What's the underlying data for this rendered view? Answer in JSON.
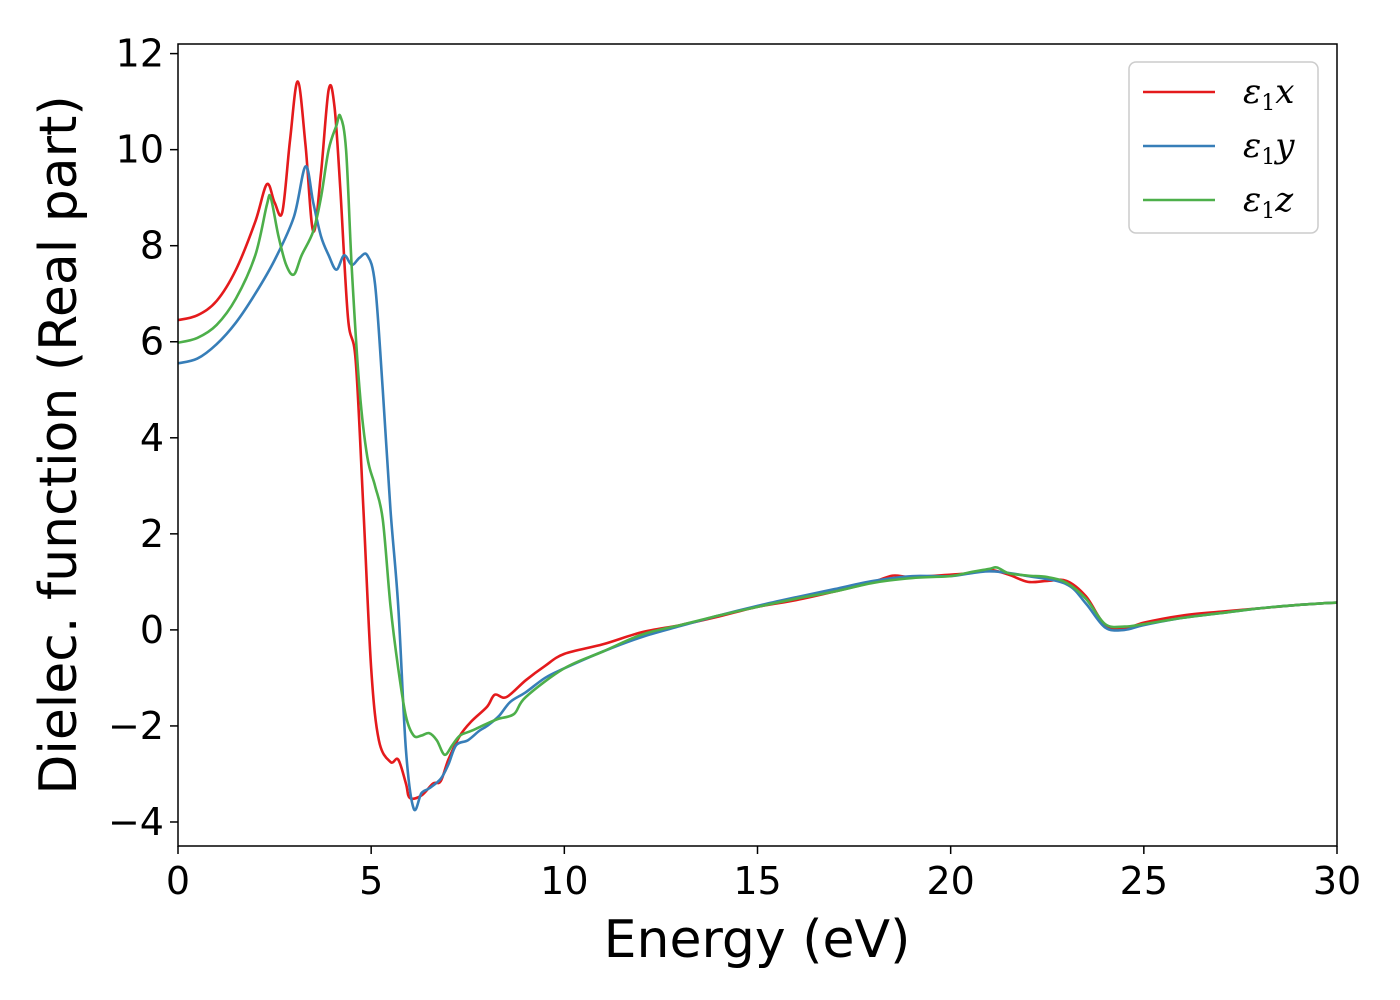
{
  "chart_data": {
    "type": "line",
    "title": "",
    "xlabel": "Energy (eV)",
    "ylabel": "Dielec. function (Real part)",
    "xlim": [
      0,
      30
    ],
    "ylim": [
      -4.5,
      12.2
    ],
    "xticks": [
      0,
      5,
      10,
      15,
      20,
      25,
      30
    ],
    "yticks": [
      -4,
      -2,
      0,
      2,
      4,
      6,
      8,
      10,
      12
    ],
    "xtick_labels": [
      "0",
      "5",
      "10",
      "15",
      "20",
      "25",
      "30"
    ],
    "ytick_labels": [
      "−4",
      "−2",
      "0",
      "2",
      "4",
      "6",
      "8",
      "10",
      "12"
    ],
    "grid": false,
    "legend_position": "top-right",
    "series": [
      {
        "name": "ε1x",
        "legend": {
          "base": "ε",
          "sub": "1",
          "suffix": "x"
        },
        "color": "#e41a1c",
        "points": [
          [
            0,
            6.45
          ],
          [
            0.5,
            6.55
          ],
          [
            1,
            6.85
          ],
          [
            1.5,
            7.5
          ],
          [
            2,
            8.5
          ],
          [
            2.3,
            9.28
          ],
          [
            2.5,
            8.9
          ],
          [
            2.7,
            8.7
          ],
          [
            2.9,
            10.2
          ],
          [
            3.1,
            11.42
          ],
          [
            3.3,
            10.1
          ],
          [
            3.5,
            8.3
          ],
          [
            3.7,
            9.5
          ],
          [
            3.9,
            11.25
          ],
          [
            4.05,
            10.9
          ],
          [
            4.2,
            9.2
          ],
          [
            4.4,
            6.5
          ],
          [
            4.6,
            5.6
          ],
          [
            4.8,
            2.5
          ],
          [
            5.0,
            -0.8
          ],
          [
            5.2,
            -2.3
          ],
          [
            5.5,
            -2.75
          ],
          [
            5.7,
            -2.7
          ],
          [
            5.9,
            -3.2
          ],
          [
            6.0,
            -3.5
          ],
          [
            6.3,
            -3.45
          ],
          [
            6.6,
            -3.2
          ],
          [
            6.8,
            -3.15
          ],
          [
            7.0,
            -2.7
          ],
          [
            7.3,
            -2.2
          ],
          [
            7.6,
            -1.9
          ],
          [
            8.0,
            -1.6
          ],
          [
            8.2,
            -1.35
          ],
          [
            8.5,
            -1.4
          ],
          [
            9,
            -1.05
          ],
          [
            9.5,
            -0.75
          ],
          [
            10,
            -0.5
          ],
          [
            11,
            -0.3
          ],
          [
            12,
            -0.05
          ],
          [
            13,
            0.1
          ],
          [
            14,
            0.28
          ],
          [
            15,
            0.48
          ],
          [
            16,
            0.62
          ],
          [
            17,
            0.8
          ],
          [
            18,
            1.0
          ],
          [
            18.5,
            1.13
          ],
          [
            19,
            1.1
          ],
          [
            20,
            1.15
          ],
          [
            20.5,
            1.18
          ],
          [
            21,
            1.25
          ],
          [
            21.5,
            1.15
          ],
          [
            22,
            1.0
          ],
          [
            22.5,
            1.02
          ],
          [
            23,
            1.02
          ],
          [
            23.5,
            0.7
          ],
          [
            24,
            0.1
          ],
          [
            24.5,
            0.02
          ],
          [
            25,
            0.15
          ],
          [
            26,
            0.3
          ],
          [
            27,
            0.38
          ],
          [
            28,
            0.45
          ],
          [
            29,
            0.52
          ],
          [
            30,
            0.57
          ]
        ]
      },
      {
        "name": "ε1y",
        "legend": {
          "base": "ε",
          "sub": "1",
          "suffix": "y"
        },
        "color": "#377eb8",
        "points": [
          [
            0,
            5.55
          ],
          [
            0.5,
            5.65
          ],
          [
            1,
            5.95
          ],
          [
            1.5,
            6.4
          ],
          [
            2,
            7.0
          ],
          [
            2.5,
            7.7
          ],
          [
            3.0,
            8.6
          ],
          [
            3.3,
            9.65
          ],
          [
            3.5,
            8.9
          ],
          [
            3.7,
            8.2
          ],
          [
            3.9,
            7.8
          ],
          [
            4.1,
            7.5
          ],
          [
            4.3,
            7.8
          ],
          [
            4.5,
            7.6
          ],
          [
            4.7,
            7.75
          ],
          [
            4.9,
            7.8
          ],
          [
            5.1,
            7.2
          ],
          [
            5.3,
            5.0
          ],
          [
            5.5,
            2.5
          ],
          [
            5.7,
            0.5
          ],
          [
            5.9,
            -2.5
          ],
          [
            6.1,
            -3.72
          ],
          [
            6.3,
            -3.4
          ],
          [
            6.5,
            -3.3
          ],
          [
            6.8,
            -3.1
          ],
          [
            7.0,
            -2.8
          ],
          [
            7.2,
            -2.4
          ],
          [
            7.5,
            -2.3
          ],
          [
            7.8,
            -2.1
          ],
          [
            8.0,
            -2.0
          ],
          [
            8.3,
            -1.8
          ],
          [
            8.6,
            -1.5
          ],
          [
            9,
            -1.3
          ],
          [
            9.5,
            -1.0
          ],
          [
            10,
            -0.8
          ],
          [
            11,
            -0.45
          ],
          [
            12,
            -0.15
          ],
          [
            13,
            0.08
          ],
          [
            14,
            0.3
          ],
          [
            15,
            0.5
          ],
          [
            16,
            0.68
          ],
          [
            17,
            0.85
          ],
          [
            18,
            1.02
          ],
          [
            19,
            1.12
          ],
          [
            20,
            1.12
          ],
          [
            21,
            1.22
          ],
          [
            22,
            1.12
          ],
          [
            23,
            0.95
          ],
          [
            23.5,
            0.55
          ],
          [
            24,
            0.05
          ],
          [
            24.5,
            0.0
          ],
          [
            25,
            0.1
          ],
          [
            26,
            0.25
          ],
          [
            27,
            0.35
          ],
          [
            28,
            0.45
          ],
          [
            29,
            0.52
          ],
          [
            30,
            0.57
          ]
        ]
      },
      {
        "name": "ε1z",
        "legend": {
          "base": "ε",
          "sub": "1",
          "suffix": "z"
        },
        "color": "#4daf4a",
        "points": [
          [
            0,
            5.98
          ],
          [
            0.5,
            6.08
          ],
          [
            1,
            6.35
          ],
          [
            1.5,
            6.9
          ],
          [
            2,
            7.8
          ],
          [
            2.3,
            8.85
          ],
          [
            2.4,
            9.0
          ],
          [
            2.6,
            8.2
          ],
          [
            2.8,
            7.6
          ],
          [
            3.0,
            7.4
          ],
          [
            3.2,
            7.8
          ],
          [
            3.5,
            8.3
          ],
          [
            3.7,
            9.0
          ],
          [
            3.9,
            10.0
          ],
          [
            4.1,
            10.5
          ],
          [
            4.2,
            10.7
          ],
          [
            4.35,
            10.0
          ],
          [
            4.5,
            7.5
          ],
          [
            4.7,
            5.0
          ],
          [
            4.9,
            3.6
          ],
          [
            5.1,
            3.0
          ],
          [
            5.3,
            2.3
          ],
          [
            5.5,
            0.5
          ],
          [
            5.7,
            -0.8
          ],
          [
            5.9,
            -1.8
          ],
          [
            6.1,
            -2.2
          ],
          [
            6.3,
            -2.2
          ],
          [
            6.5,
            -2.15
          ],
          [
            6.7,
            -2.3
          ],
          [
            6.9,
            -2.6
          ],
          [
            7.1,
            -2.4
          ],
          [
            7.3,
            -2.2
          ],
          [
            7.6,
            -2.1
          ],
          [
            8.0,
            -1.95
          ],
          [
            8.3,
            -1.85
          ],
          [
            8.7,
            -1.75
          ],
          [
            9,
            -1.4
          ],
          [
            10,
            -0.8
          ],
          [
            11,
            -0.45
          ],
          [
            12,
            -0.1
          ],
          [
            13,
            0.1
          ],
          [
            14,
            0.3
          ],
          [
            15,
            0.48
          ],
          [
            16,
            0.65
          ],
          [
            17,
            0.8
          ],
          [
            18,
            0.98
          ],
          [
            19,
            1.08
          ],
          [
            20,
            1.12
          ],
          [
            20.5,
            1.2
          ],
          [
            21,
            1.27
          ],
          [
            21.2,
            1.3
          ],
          [
            21.5,
            1.18
          ],
          [
            22,
            1.13
          ],
          [
            22.5,
            1.1
          ],
          [
            23,
            0.98
          ],
          [
            23.5,
            0.65
          ],
          [
            24,
            0.12
          ],
          [
            24.5,
            0.07
          ],
          [
            25,
            0.12
          ],
          [
            26,
            0.25
          ],
          [
            27,
            0.35
          ],
          [
            28,
            0.45
          ],
          [
            29,
            0.52
          ],
          [
            30,
            0.57
          ]
        ]
      }
    ]
  }
}
